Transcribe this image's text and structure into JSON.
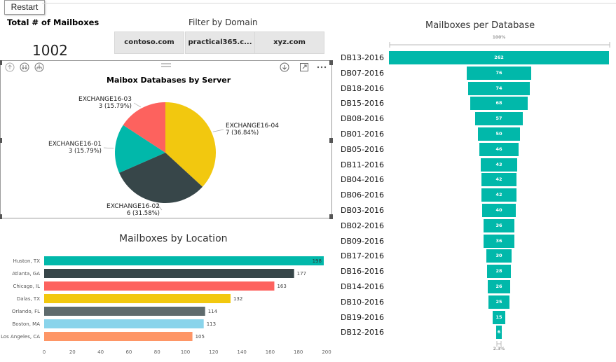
{
  "restart_label": "Restart",
  "card": {
    "label": "Total # of Mailboxes",
    "value": "1002"
  },
  "filter": {
    "title": "Filter by Domain",
    "options": [
      "contoso.com",
      "practical365.c...",
      "xyz.com"
    ]
  },
  "pie_chart": {
    "chart_data": {
      "type": "pie",
      "title": "Maibox Databases by Server",
      "slices": [
        {
          "name": "EXCHANGE16-04",
          "value": 7,
          "label": "7 (36.84%)",
          "color": "#f2c80f"
        },
        {
          "name": "EXCHANGE16-02",
          "value": 6,
          "label": "6 (31.58%)",
          "color": "#374649"
        },
        {
          "name": "EXCHANGE16-01",
          "value": 3,
          "label": "3 (15.79%)",
          "color": "#01b8aa"
        },
        {
          "name": "EXCHANGE16-03",
          "value": 3,
          "label": "3 (15.79%)",
          "color": "#fd625e"
        }
      ]
    }
  },
  "location_chart": {
    "chart_data": {
      "type": "bar",
      "orientation": "horizontal",
      "title": "Mailboxes by Location",
      "categories": [
        "Huston, TX",
        "Atlanta, GA",
        "Chicago, IL",
        "Dalas, TX",
        "Orlando, FL",
        "Boston, MA",
        "Los Angeles, CA"
      ],
      "values": [
        198,
        177,
        163,
        132,
        114,
        113,
        105
      ],
      "colors": [
        "#01b8aa",
        "#374649",
        "#fd625e",
        "#f2c80f",
        "#5f6b6d",
        "#8ad4eb",
        "#fe9666"
      ],
      "xlim": [
        0,
        200
      ],
      "xticks": [
        "0",
        "20",
        "40",
        "60",
        "80",
        "100",
        "120",
        "140",
        "160",
        "180",
        "200"
      ]
    }
  },
  "funnel_chart": {
    "chart_data": {
      "type": "funnel",
      "title": "Mailboxes per Database",
      "top_label": "100%",
      "bottom_label": "2.3%",
      "color": "#01b8aa",
      "categories": [
        "DB13-2016",
        "DB07-2016",
        "DB18-2016",
        "DB15-2016",
        "DB08-2016",
        "DB01-2016",
        "DB05-2016",
        "DB11-2016",
        "DB04-2016",
        "DB06-2016",
        "DB03-2016",
        "DB02-2016",
        "DB09-2016",
        "DB17-2016",
        "DB16-2016",
        "DB14-2016",
        "DB10-2016",
        "DB19-2016",
        "DB12-2016"
      ],
      "values": [
        262,
        76,
        74,
        68,
        57,
        50,
        46,
        43,
        42,
        42,
        40,
        36,
        36,
        30,
        28,
        26,
        25,
        15,
        6
      ]
    }
  }
}
